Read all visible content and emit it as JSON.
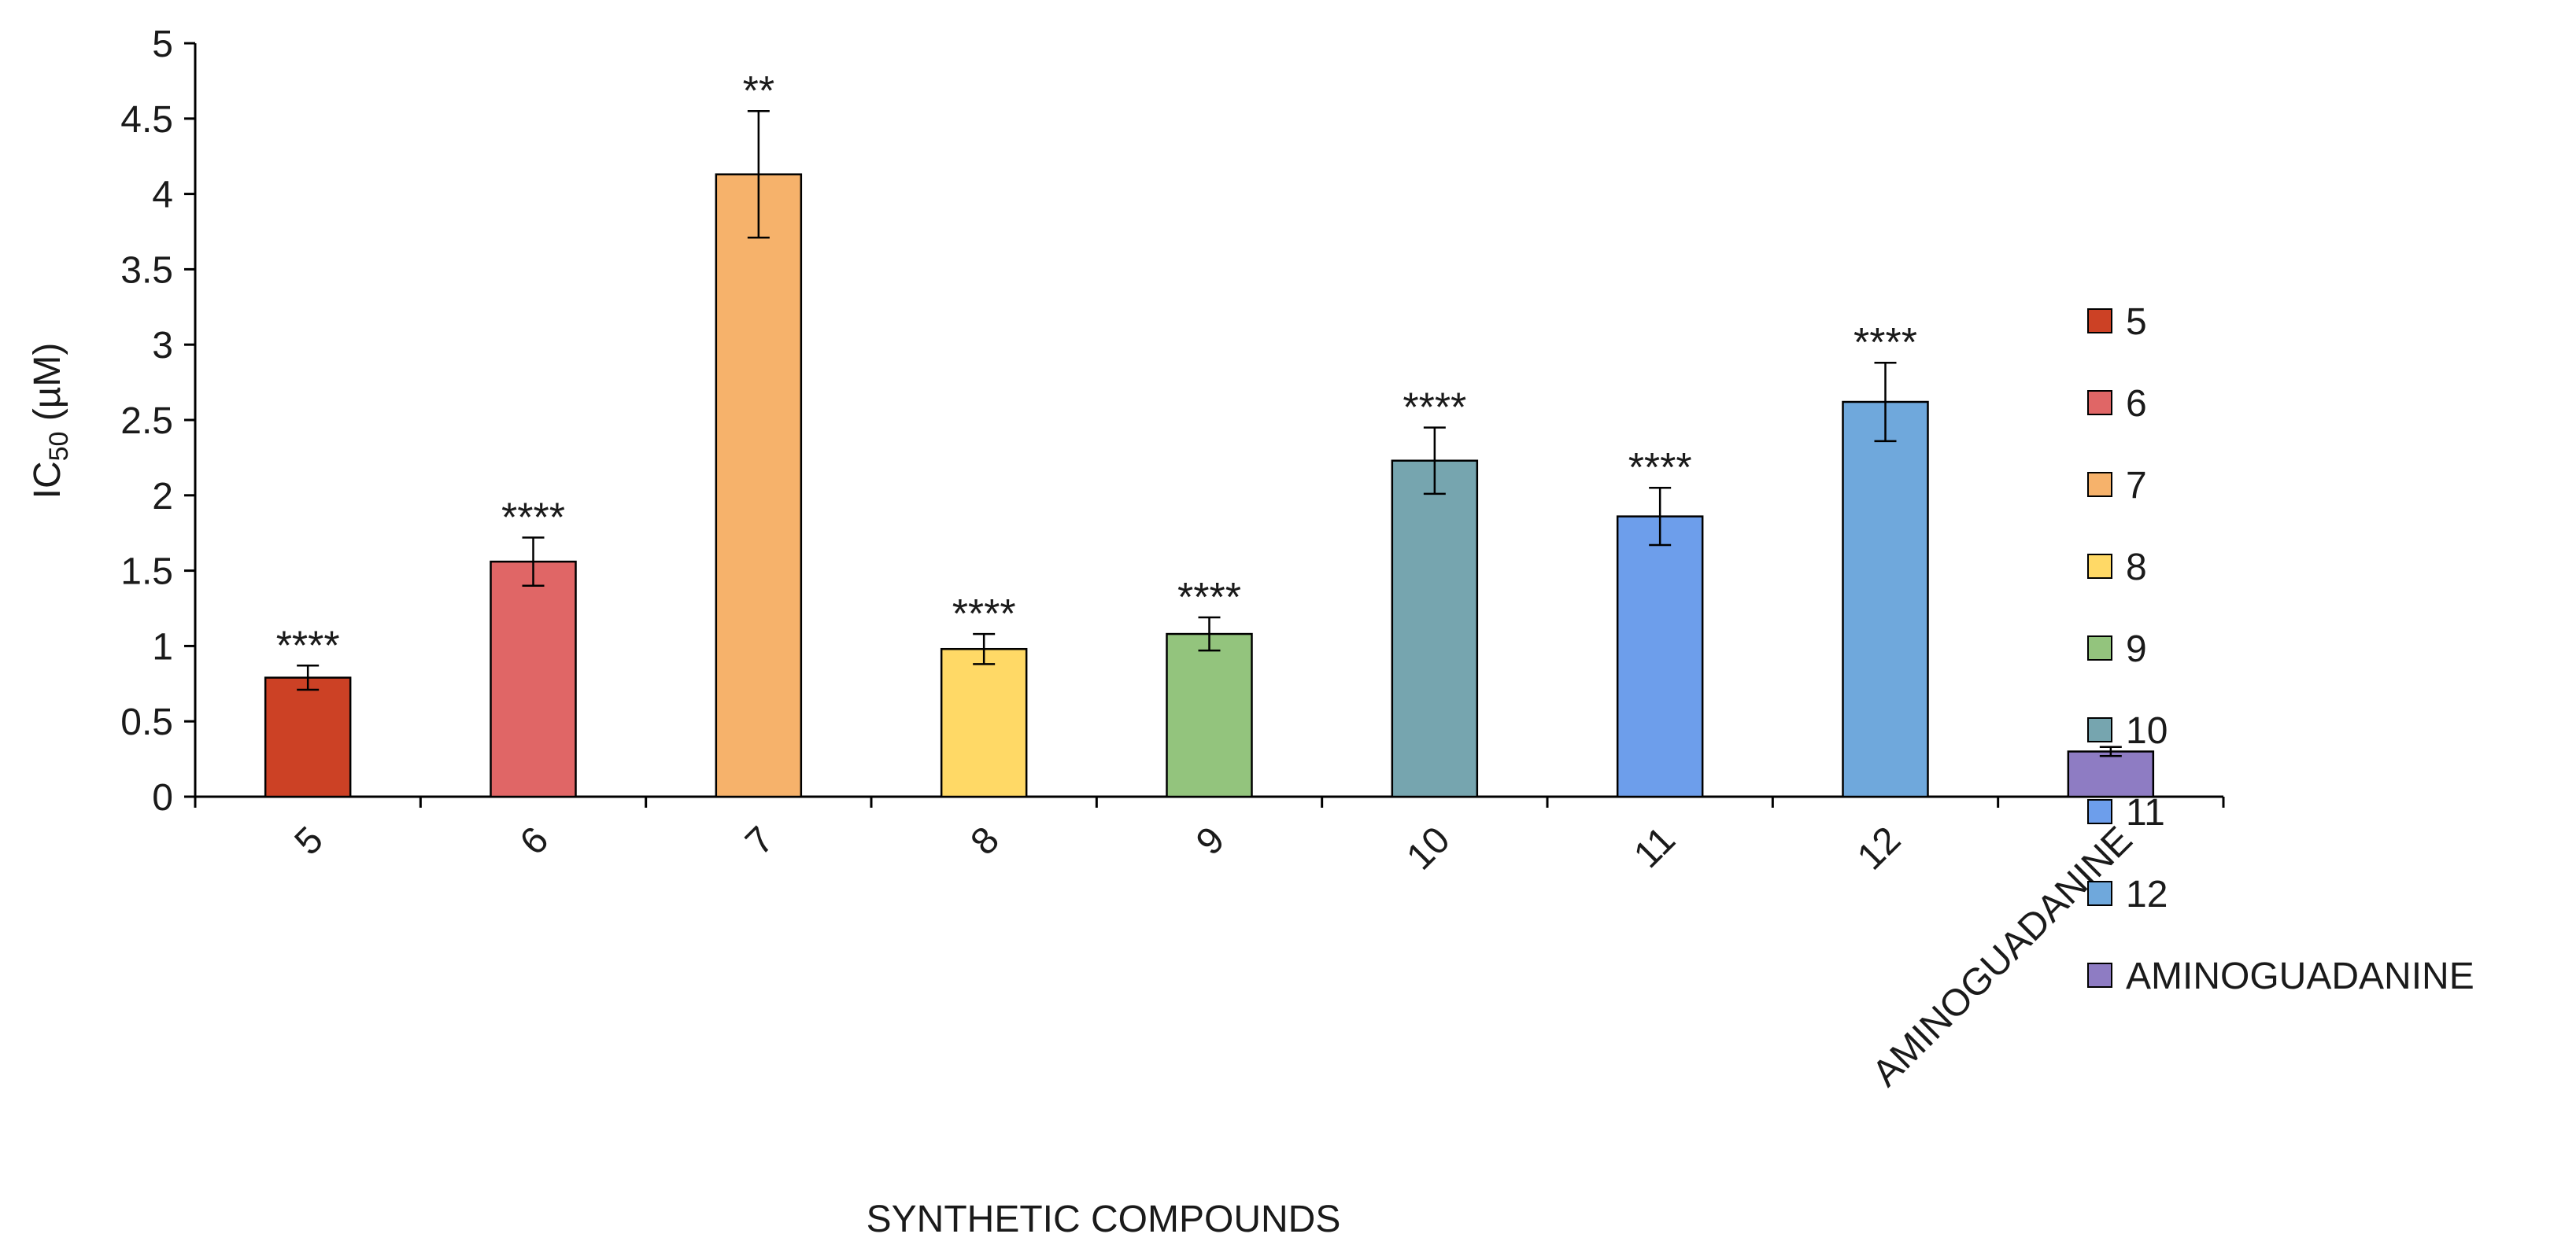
{
  "chart_data": {
    "type": "bar",
    "title": "",
    "xlabel": "SYNTHETIC COMPOUNDS",
    "ylabel": {
      "main": "IC",
      "subscript": "50",
      "unit": " (µM)"
    },
    "ylim": [
      0,
      5
    ],
    "yticks": [
      0,
      0.5,
      1,
      1.5,
      2,
      2.5,
      3,
      3.5,
      4,
      4.5,
      5
    ],
    "ytick_labels": [
      "0",
      "0.5",
      "1",
      "1.5",
      "2",
      "2.5",
      "3",
      "3.5",
      "4",
      "4.5",
      "5"
    ],
    "categories": [
      "5",
      "6",
      "7",
      "8",
      "9",
      "10",
      "11",
      "12",
      "AMINOGUADANINE"
    ],
    "values": [
      0.79,
      1.56,
      4.13,
      0.98,
      1.08,
      2.23,
      1.86,
      2.62,
      0.3
    ],
    "errors": [
      0.08,
      0.16,
      0.42,
      0.1,
      0.11,
      0.22,
      0.19,
      0.26,
      0.03
    ],
    "significance": [
      "****",
      "****",
      "**",
      "****",
      "****",
      "****",
      "****",
      "****",
      ""
    ],
    "colors": [
      "#cc4125",
      "#e06666",
      "#f6b26b",
      "#ffd966",
      "#93c47d",
      "#76a5af",
      "#6d9eeb",
      "#6fa8dc",
      "#8e7cc3"
    ],
    "legend": {
      "position": "right",
      "entries": [
        "5",
        "6",
        "7",
        "8",
        "9",
        "10",
        "11",
        "12",
        "AMINOGUADANINE"
      ]
    },
    "grid": false
  }
}
